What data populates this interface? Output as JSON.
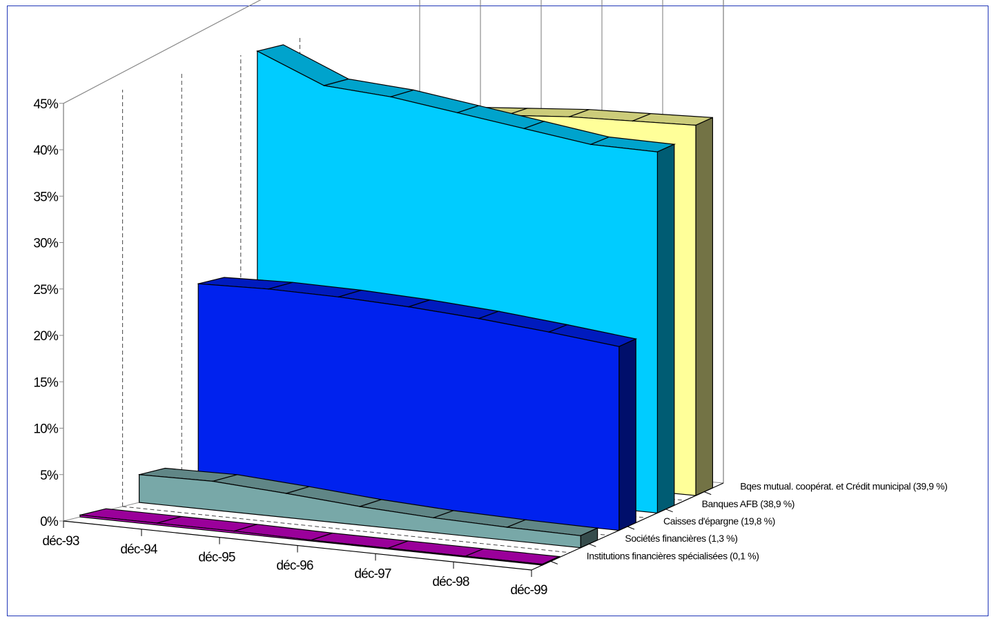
{
  "chart_data": {
    "type": "area",
    "style": "3d-ribbon",
    "title": "",
    "xlabel": "",
    "ylabel": "",
    "ylim": [
      0,
      45
    ],
    "y_ticks": [
      "0%",
      "5%",
      "10%",
      "15%",
      "20%",
      "25%",
      "30%",
      "35%",
      "40%",
      "45%"
    ],
    "categories": [
      "déc-93",
      "déc-94",
      "déc-95",
      "déc-96",
      "déc-97",
      "déc-98",
      "déc-99"
    ],
    "grid": true,
    "series": [
      {
        "name": "Institutions financières spécialisées (0,1 %)",
        "color": "#c000c0",
        "values": [
          0.2,
          0.2,
          0.2,
          0.1,
          0.1,
          0.1,
          0.1
        ]
      },
      {
        "name": "Sociétés financières (1,3 %)",
        "color": "#78a8a8",
        "values": [
          3.0,
          3.1,
          2.6,
          2.0,
          1.6,
          1.4,
          1.3
        ]
      },
      {
        "name": "Caisses d'épargne (19,8 %)",
        "color": "#0022ee",
        "values": [
          22.0,
          22.2,
          22.1,
          21.8,
          21.3,
          20.6,
          19.8
        ]
      },
      {
        "name": "Banques AFB (38,9 %)",
        "color": "#00ccff",
        "values": [
          45.5,
          42.5,
          42.0,
          41.0,
          40.0,
          39.0,
          38.9
        ]
      },
      {
        "name": "Bqes mutual. coopérat. et Crédit municipal (39,9 %)",
        "color": "#ffff99",
        "values": [
          36.5,
          38.0,
          38.5,
          39.0,
          39.5,
          39.7,
          39.9
        ]
      }
    ]
  }
}
